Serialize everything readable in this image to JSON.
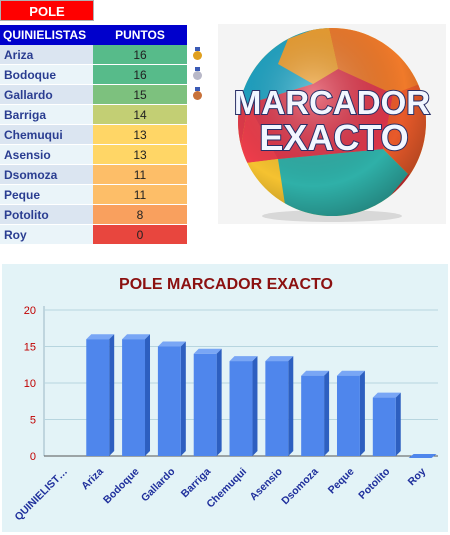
{
  "table": {
    "header_tab": "POLE",
    "col_name": "QUINIELISTAS",
    "col_points": "PUNTOS",
    "rows": [
      {
        "name": "Ariza",
        "points": 16,
        "color": "#57bb8a",
        "medal": "gold"
      },
      {
        "name": "Bodoque",
        "points": 16,
        "color": "#57bb8a",
        "medal": "silver"
      },
      {
        "name": "Gallardo",
        "points": 15,
        "color": "#7dc17e",
        "medal": "bronze"
      },
      {
        "name": "Barriga",
        "points": 14,
        "color": "#c3cf74",
        "medal": ""
      },
      {
        "name": "Chemuqui",
        "points": 13,
        "color": "#ffd666",
        "medal": ""
      },
      {
        "name": "Asensio",
        "points": 13,
        "color": "#ffd666",
        "medal": ""
      },
      {
        "name": "Dsomoza",
        "points": 11,
        "color": "#fdbe68",
        "medal": ""
      },
      {
        "name": "Peque",
        "points": 11,
        "color": "#fdbe68",
        "medal": ""
      },
      {
        "name": "Potolito",
        "points": 8,
        "color": "#f9a05e",
        "medal": ""
      },
      {
        "name": "Roy",
        "points": 0,
        "color": "#e8463e",
        "medal": ""
      }
    ]
  },
  "ball": {
    "line1": "MARCADOR",
    "line2": "EXACTO"
  },
  "chart_data": {
    "type": "bar",
    "title": "POLE MARCADOR EXACTO",
    "categories": [
      "QUINIELISTAS",
      "Ariza",
      "Bodoque",
      "Gallardo",
      "Barriga",
      "Chemuqui",
      "Asensio",
      "Dsomoza",
      "Peque",
      "Potolito",
      "Roy"
    ],
    "category_labels": [
      "QUINIELIST…",
      "Ariza",
      "Bodoque",
      "Gallardo",
      "Barriga",
      "Chemuqui",
      "Asensio",
      "Dsomoza",
      "Peque",
      "Potolito",
      "Roy"
    ],
    "values": [
      null,
      16,
      16,
      15,
      14,
      13,
      13,
      11,
      11,
      8,
      0
    ],
    "ylim": [
      0,
      20
    ],
    "yticks": [
      0,
      5,
      10,
      15,
      20
    ],
    "grid": true,
    "xlabel": "",
    "ylabel": "",
    "bar_color": "#4f86ec",
    "title_color": "#8b1010",
    "tick_color": "#c00000",
    "label_color": "#1f2f9c"
  }
}
